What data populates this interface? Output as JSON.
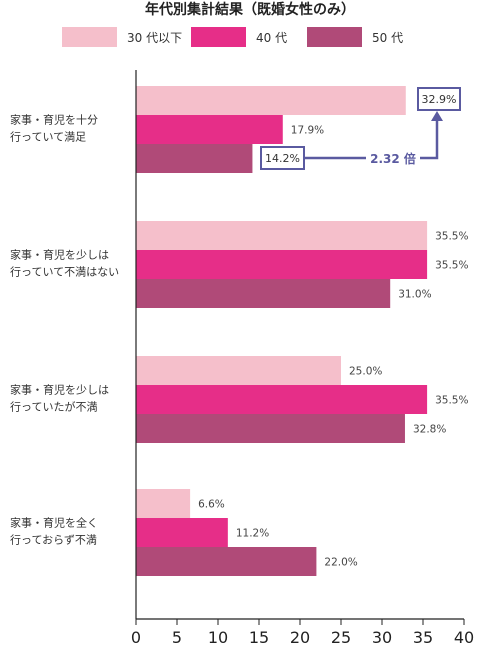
{
  "chart_data": {
    "type": "bar",
    "orientation": "horizontal",
    "title": "年代別集計結果（既婚女性のみ）",
    "categories": [
      [
        "家事・育児を十分",
        "行っていて満足"
      ],
      [
        "家事・育児を少しは",
        "行っていて不満はない"
      ],
      [
        "家事・育児を少しは",
        "行っていたが不満"
      ],
      [
        "家事・育児を全く",
        "行っておらず不満"
      ]
    ],
    "series": [
      {
        "name": "30 代以下",
        "color": "#f5bfcb",
        "values": [
          32.9,
          35.5,
          25.0,
          6.6
        ]
      },
      {
        "name": "40 代",
        "color": "#e62e88",
        "values": [
          17.9,
          35.5,
          35.5,
          11.2
        ]
      },
      {
        "name": "50 代",
        "color": "#b04a78",
        "values": [
          14.2,
          31.0,
          32.8,
          22.0
        ]
      }
    ],
    "xlim": [
      0,
      40
    ],
    "xticks": [
      0,
      5,
      10,
      15,
      20,
      25,
      30,
      35,
      40
    ],
    "grid": false,
    "legend_position": "top",
    "annotations": {
      "boxed_values": [
        "32.9%",
        "14.2%"
      ],
      "ratio": "2.32 倍"
    }
  }
}
